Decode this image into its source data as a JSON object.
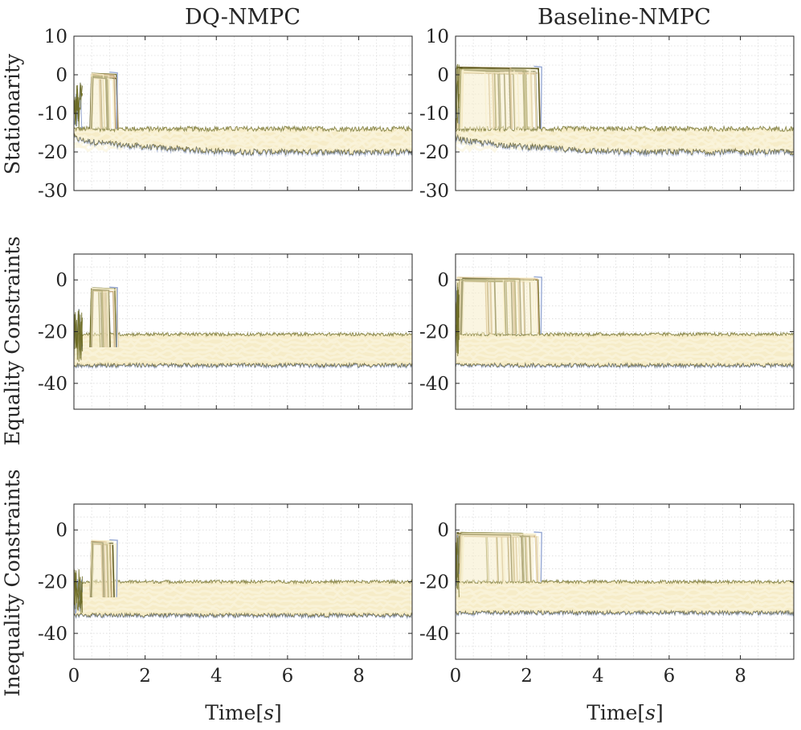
{
  "figure": {
    "columns": [
      "DQ-NMPC",
      "Baseline-NMPC"
    ],
    "row_labels": [
      "Stationarity",
      "Equality Constraints",
      "Inequality Constraints"
    ],
    "xlabel_parts": [
      "Time[",
      "s",
      "]"
    ]
  },
  "colors": {
    "band": "#f6ecc8",
    "band_light": "#fbf5dd",
    "olive": "#6b6a22",
    "olive_dark": "#4d4a14",
    "tan": "#c8ab7c",
    "blue": "#7d93c9",
    "axis": "#262626",
    "grid": "#dcdcdc"
  },
  "chart_data": [
    {
      "type": "line",
      "title": "DQ-NMPC",
      "ylabel": "Stationarity",
      "xlabel": "",
      "xlim": [
        0,
        9.5
      ],
      "ylim": [
        -30,
        10
      ],
      "xticks": [
        0,
        2,
        4,
        6,
        8
      ],
      "yticks": [
        10,
        0,
        -10,
        -20,
        -30
      ],
      "grid": true,
      "x_tick_labels": false,
      "band": {
        "upper": -14,
        "lower": -20,
        "x": [
          0,
          9.5
        ]
      },
      "dip": {
        "lower_start": -16,
        "lower_end": -20,
        "x_end": 4.5
      },
      "transient": {
        "x_start": 0.45,
        "x_end": 1.25,
        "y_peak": 0.5,
        "y_base": -14
      },
      "initial_spike": {
        "x": [
          0,
          0.25
        ],
        "y_min": -14,
        "y_max": -2
      }
    },
    {
      "type": "line",
      "title": "Baseline-NMPC",
      "ylabel": "",
      "xlabel": "",
      "xlim": [
        0,
        9.5
      ],
      "ylim": [
        -30,
        10
      ],
      "xticks": [
        0,
        2,
        4,
        6,
        8
      ],
      "yticks": [
        10,
        0,
        -10,
        -20,
        -30
      ],
      "grid": true,
      "x_tick_labels": false,
      "band": {
        "upper": -14,
        "lower": -20,
        "x": [
          0,
          9.5
        ]
      },
      "dip": {
        "lower_start": -16,
        "lower_end": -20,
        "x_end": 4.5
      },
      "transient": {
        "x_start": 0.0,
        "x_end": 2.45,
        "y_peak": 2.0,
        "y_base": -14
      },
      "initial_spike": {
        "x": [
          0,
          0.1
        ],
        "y_min": -14,
        "y_max": 3
      }
    },
    {
      "type": "line",
      "title": "",
      "ylabel": "Equality Constraints",
      "xlabel": "",
      "xlim": [
        0,
        9.5
      ],
      "ylim": [
        -50,
        10
      ],
      "xticks": [
        0,
        2,
        4,
        6,
        8
      ],
      "yticks": [
        0,
        -20,
        -40
      ],
      "grid": true,
      "x_tick_labels": false,
      "band": {
        "upper": -21,
        "lower": -33,
        "x": [
          0,
          9.5
        ]
      },
      "transient": {
        "x_start": 0.45,
        "x_end": 1.25,
        "y_peak": -3,
        "y_base": -26
      },
      "initial_spike": {
        "x": [
          0,
          0.25
        ],
        "y_min": -32,
        "y_max": -11
      }
    },
    {
      "type": "line",
      "title": "",
      "ylabel": "",
      "xlabel": "",
      "xlim": [
        0,
        9.5
      ],
      "ylim": [
        -50,
        10
      ],
      "xticks": [
        0,
        2,
        4,
        6,
        8
      ],
      "yticks": [
        0,
        -20,
        -40
      ],
      "grid": true,
      "x_tick_labels": false,
      "band": {
        "upper": -21,
        "lower": -33,
        "x": [
          0,
          9.5
        ]
      },
      "transient": {
        "x_start": 0.0,
        "x_end": 2.45,
        "y_peak": 1,
        "y_base": -21
      },
      "initial_spike": {
        "x": [
          0,
          0.1
        ],
        "y_min": -30,
        "y_max": 2
      }
    },
    {
      "type": "line",
      "title": "",
      "ylabel": "Inequality Constraints",
      "xlabel": "Time[s]",
      "xlim": [
        0,
        9.5
      ],
      "ylim": [
        -50,
        10
      ],
      "xticks": [
        0,
        2,
        4,
        6,
        8
      ],
      "yticks": [
        0,
        -20,
        -40
      ],
      "grid": true,
      "x_tick_labels": true,
      "band": {
        "upper": -20,
        "lower": -33,
        "x": [
          0,
          9.5
        ]
      },
      "transient": {
        "x_start": 0.45,
        "x_end": 1.25,
        "y_peak": -4,
        "y_base": -26
      },
      "initial_spike": {
        "x": [
          0,
          0.25
        ],
        "y_min": -33,
        "y_max": -14
      }
    },
    {
      "type": "line",
      "title": "",
      "ylabel": "",
      "xlabel": "Time[s]",
      "xlim": [
        0,
        9.5
      ],
      "ylim": [
        -50,
        10
      ],
      "xticks": [
        0,
        2,
        4,
        6,
        8
      ],
      "yticks": [
        0,
        -20,
        -40
      ],
      "grid": true,
      "x_tick_labels": true,
      "band": {
        "upper": -20,
        "lower": -32,
        "x": [
          0,
          9.5
        ]
      },
      "transient": {
        "x_start": 0.0,
        "x_end": 2.45,
        "y_peak": -1,
        "y_base": -20
      },
      "initial_spike": {
        "x": [
          0,
          0.1
        ],
        "y_min": -30,
        "y_max": -1
      }
    }
  ]
}
